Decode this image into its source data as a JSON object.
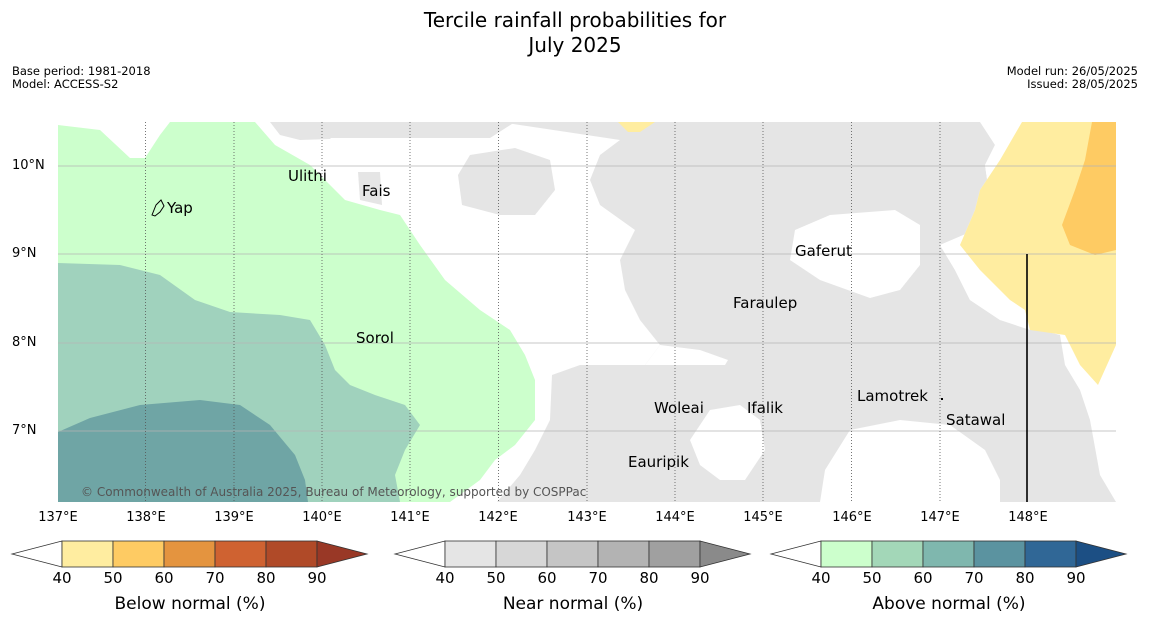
{
  "title_line1": "Tercile rainfall probabilities for",
  "title_line2": "July 2025",
  "meta": {
    "base_period": "Base period: 1981-2018",
    "model": "Model: ACCESS-S2",
    "model_run": "Model run: 26/05/2025",
    "issued": "Issued: 28/05/2025"
  },
  "lat_labels": [
    "10°N",
    "9°N",
    "8°N",
    "7°N"
  ],
  "lon_labels": [
    "137°E",
    "138°E",
    "139°E",
    "140°E",
    "141°E",
    "142°E",
    "143°E",
    "144°E",
    "145°E",
    "146°E",
    "147°E",
    "148°E"
  ],
  "places": [
    "Ulithi",
    "Fais",
    "Yap",
    "Gaferut",
    "Faraulep",
    "Sorol",
    "Woleai",
    "Ifalik",
    "Lamotrek",
    "Satawal",
    "Eauripik"
  ],
  "copyright": "© Commonwealth of Australia 2025, Bureau of Meteorology, supported by COSPPac",
  "legends": [
    {
      "label": "Below normal (%)",
      "ticks": [
        "40",
        "50",
        "60",
        "70",
        "80",
        "90"
      ],
      "colors": [
        "#ffeda0",
        "#fecb63",
        "#e4943f",
        "#cf6231",
        "#b04a28",
        "#993826"
      ]
    },
    {
      "label": "Near normal (%)",
      "ticks": [
        "40",
        "50",
        "60",
        "70",
        "80",
        "90"
      ],
      "colors": [
        "#e5e5e5",
        "#d7d7d7",
        "#c5c5c5",
        "#b3b3b3",
        "#a0a0a0",
        "#8a8a8a"
      ]
    },
    {
      "label": "Above normal (%)",
      "ticks": [
        "40",
        "50",
        "60",
        "70",
        "80",
        "90"
      ],
      "colors": [
        "#ccffcc",
        "#a3d7b8",
        "#7fb7ae",
        "#5b93a0",
        "#306796",
        "#1c4f84"
      ]
    }
  ]
}
